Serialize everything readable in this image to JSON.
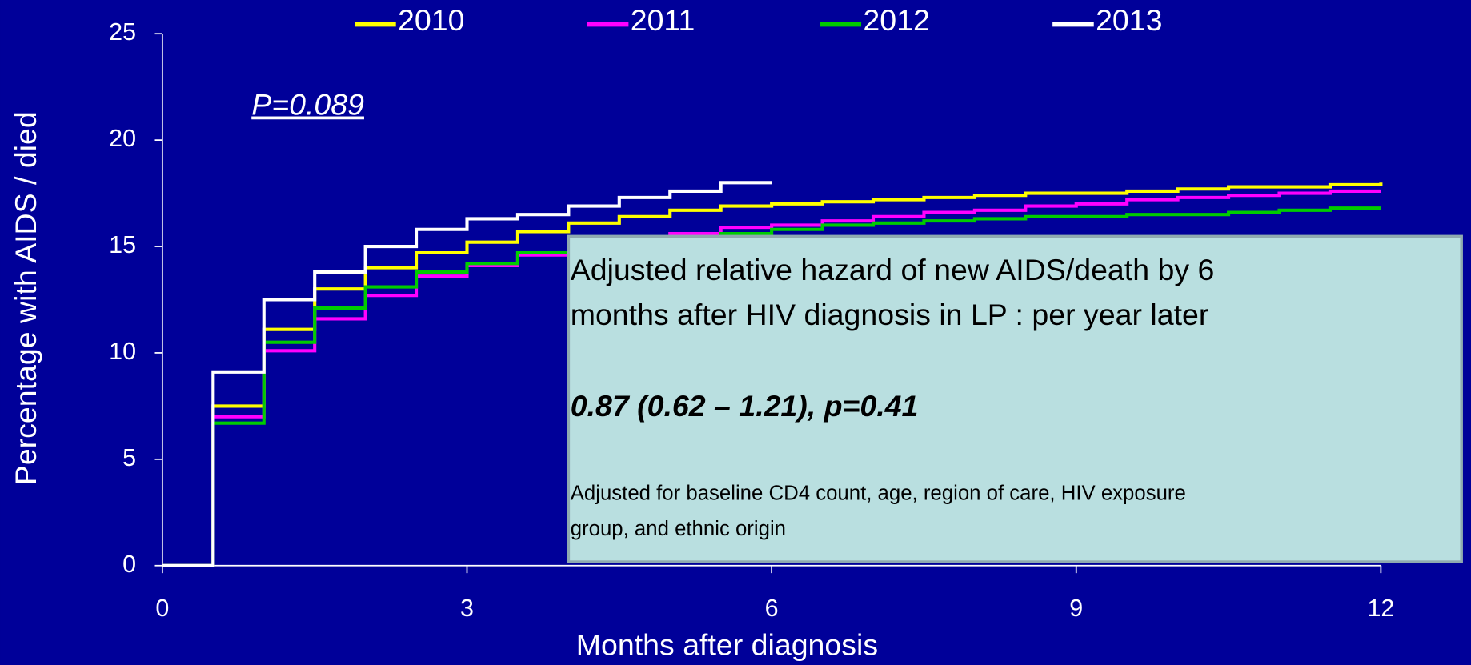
{
  "chart_data": {
    "type": "line",
    "drawstyle": "steps-post",
    "xlabel": "Months after diagnosis",
    "ylabel": "Percentage with AIDS / died",
    "xlim": [
      0,
      12
    ],
    "xticks": [
      0,
      3,
      6,
      9,
      12
    ],
    "ylim": [
      0,
      25
    ],
    "yticks": [
      0,
      5,
      10,
      15,
      20,
      25
    ],
    "legend": "top",
    "series": [
      {
        "name": "2010",
        "color": "#ffff00",
        "x": [
          0,
          0.5,
          1,
          1.5,
          2,
          2.5,
          3,
          3.5,
          4,
          4.5,
          5,
          5.5,
          6,
          6.5,
          7,
          7.5,
          8,
          8.5,
          9,
          9.5,
          10,
          10.5,
          11,
          11.5,
          12
        ],
        "values": [
          0,
          7.5,
          11.1,
          13.0,
          14.0,
          14.7,
          15.2,
          15.7,
          16.1,
          16.4,
          16.7,
          16.9,
          17.0,
          17.1,
          17.2,
          17.3,
          17.4,
          17.5,
          17.5,
          17.6,
          17.7,
          17.8,
          17.8,
          17.9,
          18.0
        ]
      },
      {
        "name": "2011",
        "color": "#ff00ff",
        "x": [
          0,
          0.5,
          1,
          1.5,
          2,
          2.5,
          3,
          3.5,
          4,
          4.5,
          5,
          5.5,
          6,
          6.5,
          7,
          7.5,
          8,
          8.5,
          9,
          9.5,
          10,
          10.5,
          11,
          11.5,
          12
        ],
        "values": [
          0,
          7.0,
          10.1,
          11.6,
          12.7,
          13.6,
          14.1,
          14.6,
          15.0,
          15.3,
          15.6,
          15.9,
          16.0,
          16.2,
          16.4,
          16.6,
          16.7,
          16.9,
          17.0,
          17.2,
          17.3,
          17.4,
          17.5,
          17.6,
          17.6
        ]
      },
      {
        "name": "2012",
        "color": "#00cc00",
        "x": [
          0,
          0.5,
          1,
          1.5,
          2,
          2.5,
          3,
          3.5,
          4,
          4.5,
          5,
          5.5,
          6,
          6.5,
          7,
          7.5,
          8,
          8.5,
          9,
          9.5,
          10,
          10.5,
          11,
          11.5,
          12
        ],
        "values": [
          0,
          6.7,
          10.5,
          12.1,
          13.1,
          13.8,
          14.2,
          14.7,
          14.9,
          15.1,
          15.4,
          15.6,
          15.8,
          16.0,
          16.1,
          16.2,
          16.3,
          16.4,
          16.4,
          16.5,
          16.5,
          16.6,
          16.7,
          16.8,
          16.8
        ]
      },
      {
        "name": "2013",
        "color": "#ffffff",
        "x": [
          0,
          0.5,
          1,
          1.5,
          2,
          2.5,
          3,
          3.5,
          4,
          4.5,
          5,
          5.5,
          6
        ],
        "values": [
          0,
          9.1,
          12.5,
          13.8,
          15.0,
          15.8,
          16.3,
          16.5,
          16.9,
          17.3,
          17.6,
          18.0,
          18.0
        ]
      }
    ],
    "annotations": {
      "pvalue": "P=0.089",
      "box_lines": [
        "Adjusted relative hazard of new AIDS/death by 6",
        "months after HIV diagnosis in LP : per year later"
      ],
      "box_result": "0.87 (0.62 – 1.21), p=0.41",
      "box_note_lines": [
        "Adjusted for baseline CD4 count, age, region of care, HIV exposure",
        "group, and ethnic origin"
      ]
    }
  }
}
